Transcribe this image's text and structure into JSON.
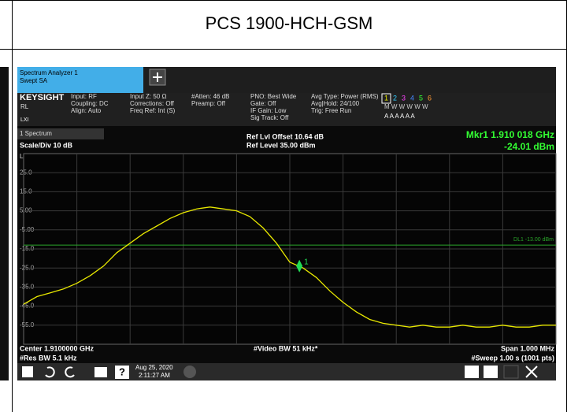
{
  "document": {
    "title": "PCS 1900-HCH-GSM"
  },
  "screen": {
    "tab": [
      "Spectrum Analyzer 1",
      "Swept SA"
    ],
    "brand": "KEYSIGHT",
    "rl": "RL",
    "lxi": "LXI",
    "info": [
      [
        "Input: RF",
        "Coupling: DC",
        "Align: Auto"
      ],
      [
        "Input Z: 50 Ω",
        "Corrections: Off",
        "Freq Ref: Int (S)"
      ],
      [
        "#Atten: 46 dB",
        "Preamp: Off"
      ],
      [
        "PNO: Best Wide",
        "Gate: Off",
        "IF Gain: Low",
        "Sig Track: Off"
      ],
      [
        "Avg Type: Power (RMS)",
        "Avg|Hold: 24/100",
        "Trig: Free Run"
      ]
    ],
    "trace_numbers": [
      "1",
      "2",
      "3",
      "4",
      "5",
      "6"
    ],
    "trace_modes": "M W W W W W",
    "trace_types": "A A A A A A",
    "window": "1 Spectrum",
    "scale": "Scale/Div 10 dB",
    "ref_offset": "Ref Lvl Offset 10.64 dB",
    "ref_level": "Ref Level 35.00 dBm",
    "log": "Log",
    "marker_freq": "Mkr1 1.910 018 GHz",
    "marker_amp": "-24.01 dBm",
    "footer": {
      "center": "Center 1.9100000 GHz",
      "rbw": "#Res BW 5.1 kHz",
      "vbw": "#Video BW 51 kHz*",
      "span": "Span 1.000 MHz",
      "sweep": "#Sweep 1.00 s (1001 pts)"
    },
    "date": "Aug 25, 2020",
    "time": "2:11:27 AM"
  },
  "chart_data": {
    "type": "line",
    "color": "#e8e800",
    "x": [
      1.9095,
      1.909525,
      1.90955,
      1.909575,
      1.9096,
      1.909625,
      1.90965,
      1.909675,
      1.9097,
      1.909725,
      1.90975,
      1.909775,
      1.9098,
      1.909825,
      1.90985,
      1.909875,
      1.9099,
      1.909925,
      1.90995,
      1.909975,
      1.91,
      1.910025,
      1.91005,
      1.910075,
      1.9101,
      1.910125,
      1.91015,
      1.910175,
      1.9102,
      1.910225,
      1.91025,
      1.910275,
      1.9103,
      1.910325,
      1.91035,
      1.910375,
      1.9104,
      1.910425,
      1.91045,
      1.910475,
      1.9105
    ],
    "values": [
      -44,
      -40,
      -38,
      -36,
      -33,
      -29,
      -24,
      -17,
      -12,
      -7,
      -3,
      1,
      4,
      6,
      7,
      6,
      5,
      2,
      -4,
      -12,
      -22,
      -25,
      -30,
      -37,
      -43,
      -48,
      -52,
      -54,
      -55,
      -56,
      -55,
      -56,
      -56,
      -55,
      -56,
      -56,
      -55,
      -56,
      -56,
      -55,
      -55
    ],
    "xlim": [
      1.9095,
      1.9105
    ],
    "ylim": [
      -65,
      35
    ],
    "yticks": [
      {
        "value": 25,
        "label": "25.0"
      },
      {
        "value": 15,
        "label": "15.0"
      },
      {
        "value": 5,
        "label": "5.00"
      },
      {
        "value": -5,
        "label": "-5.00"
      },
      {
        "value": -15,
        "label": "-15.0"
      },
      {
        "value": -25,
        "label": "-25.0"
      },
      {
        "value": -35,
        "label": "-35.0"
      },
      {
        "value": -45,
        "label": "-45.0"
      },
      {
        "value": -55,
        "label": "-55.0"
      }
    ],
    "grid": true,
    "display_line": {
      "value": -13,
      "label": "DL1 -13.00 dBm",
      "color": "#2aa52a"
    },
    "marker": {
      "x": 1.910018,
      "y": -24.01,
      "label": "1",
      "color": "#22dd55"
    }
  }
}
